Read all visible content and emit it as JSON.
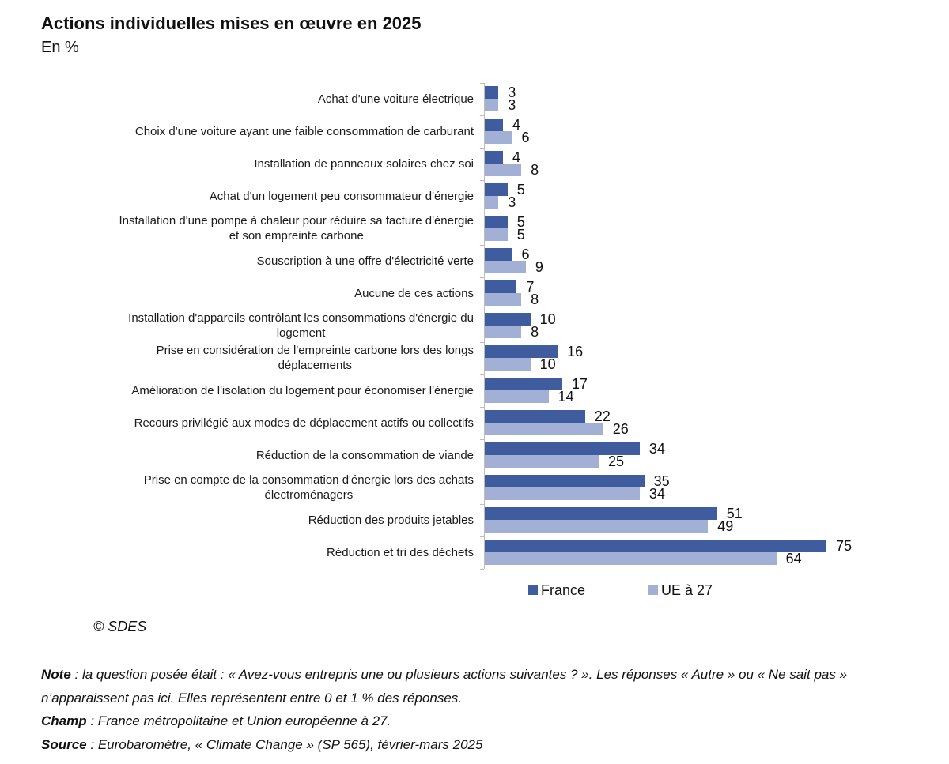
{
  "chart_data": {
    "type": "bar",
    "orientation": "horizontal",
    "title": "Actions individuelles mises en œuvre en 2025",
    "subtitle": "En %",
    "categories": [
      "Achat d'une voiture électrique",
      "Choix d'une voiture ayant une faible consommation de carburant",
      "Installation de panneaux solaires chez soi",
      "Achat d'un logement peu consommateur d'énergie",
      "Installation d'une pompe à chaleur pour réduire sa facture d'énergie\net son empreinte carbone",
      "Souscription à une offre d'électricité verte",
      "Aucune de ces actions",
      "Installation d'appareils contrôlant les consommations d'énergie du\nlogement",
      "Prise en considération de l'empreinte carbone lors des longs\ndéplacements",
      "Amélioration de l'isolation du logement pour économiser l'énergie",
      "Recours privilégié aux modes de déplacement actifs ou collectifs",
      "Réduction de la consommation de viande",
      "Prise en compte de la consommation d'énergie lors des achats\nélectroménagers",
      "Réduction des produits jetables",
      "Réduction et tri des déchets"
    ],
    "series": [
      {
        "name": "France",
        "color": "#3f5c9f",
        "values": [
          3,
          4,
          4,
          5,
          5,
          6,
          7,
          10,
          16,
          17,
          22,
          34,
          35,
          51,
          75
        ]
      },
      {
        "name": "UE à 27",
        "color": "#a3b0d5",
        "values": [
          3,
          6,
          8,
          3,
          5,
          9,
          8,
          8,
          10,
          14,
          26,
          25,
          34,
          49,
          64
        ]
      }
    ],
    "data_labels": true,
    "grid": false,
    "legend": "bottom"
  },
  "credit": "© SDES",
  "notes": [
    {
      "label": "Note",
      "text": ": la question posée était : « Avez-vous entrepris une ou plusieurs actions suivantes ? ». Les réponses « Autre » ou « Ne sait pas » n’apparaissent pas ici. Elles représentent entre 0 et 1 % des réponses."
    },
    {
      "label": "Champ",
      "text": ": France métropolitaine et Union européenne à 27."
    },
    {
      "label": "Source",
      "text": ": Eurobaromètre, « Climate Change » (SP 565), février-mars 2025"
    }
  ]
}
